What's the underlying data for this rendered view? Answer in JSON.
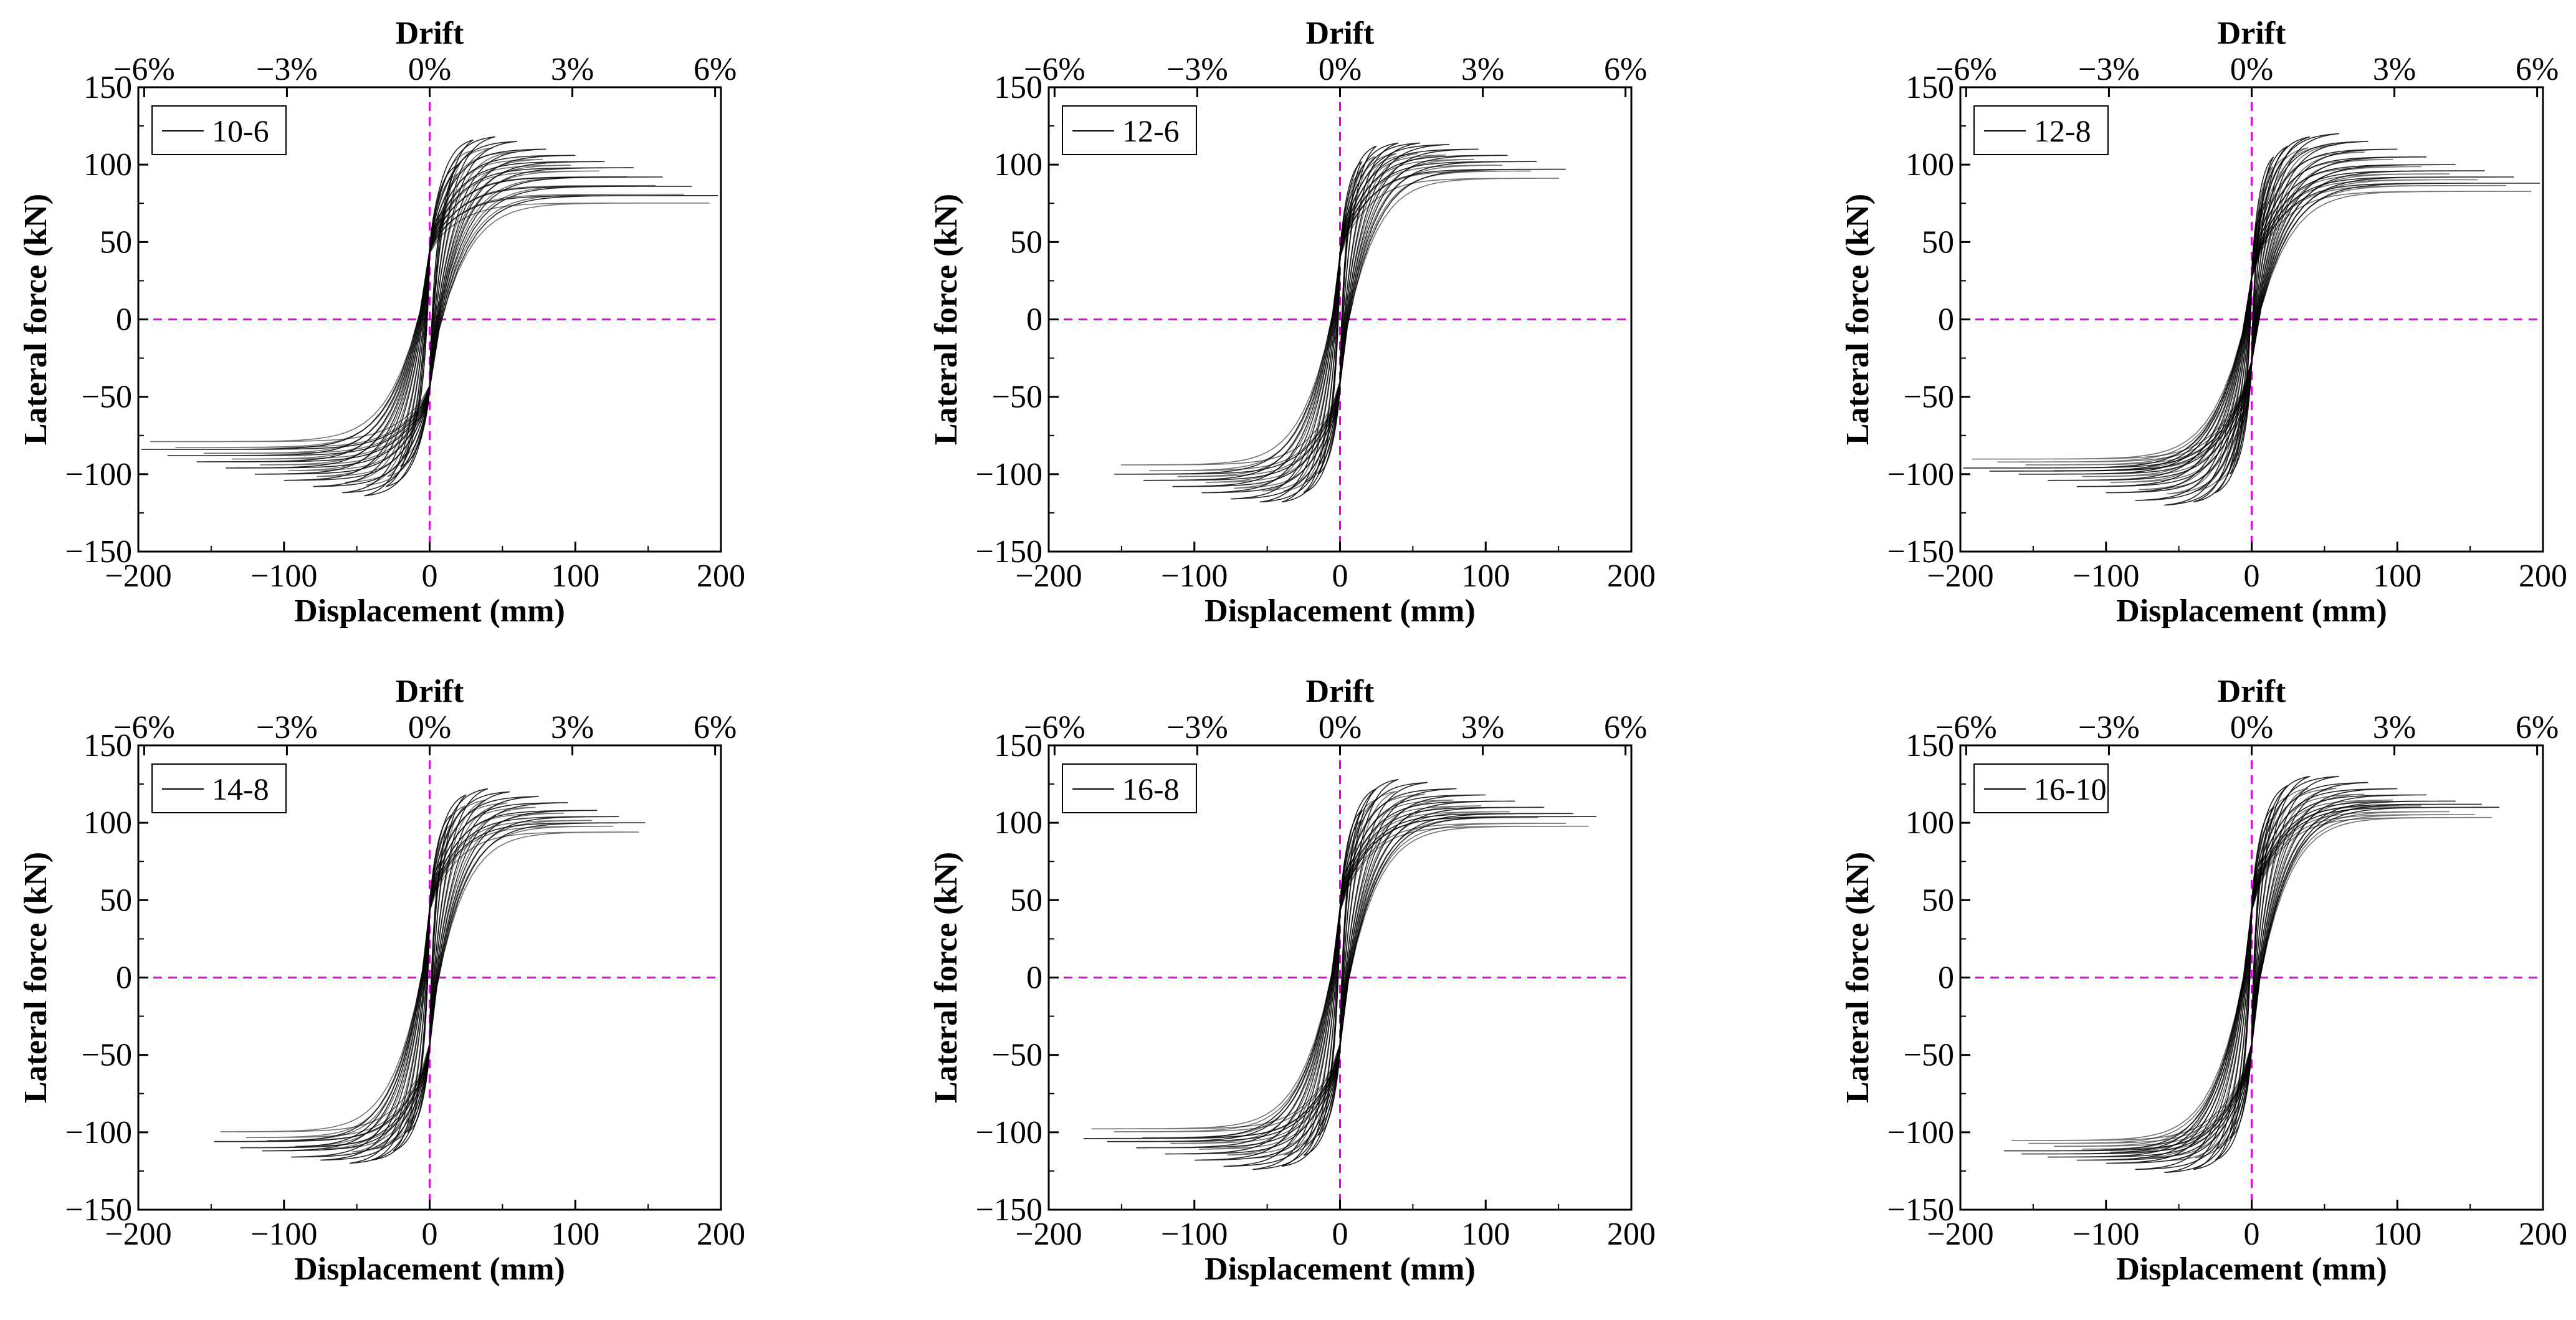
{
  "chart_data": [
    {
      "type": "line",
      "panel": "10-6",
      "legend": [
        "10-6"
      ],
      "xlabel": "Displacement (mm)",
      "ylabel": "Lateral force (kN)",
      "top_xlabel": "Drift",
      "xlim": [
        -200,
        200
      ],
      "ylim": [
        -150,
        150
      ],
      "xticks": [
        -200,
        -100,
        0,
        100,
        200
      ],
      "yticks": [
        -150,
        -100,
        -50,
        0,
        50,
        100,
        150
      ],
      "top_ticks": [
        "−6%",
        "−3%",
        "0%",
        "3%",
        "6%"
      ],
      "reference_lines": {
        "x": 0,
        "y": 0,
        "color": "#e600e6",
        "style": "dashed"
      },
      "series_color": "#000000",
      "loops": [
        {
          "d": 10,
          "fmax": 70,
          "fmin": -66
        },
        {
          "d": 20,
          "fmax": 100,
          "fmin": -95
        },
        {
          "d": 30,
          "fmax": 116,
          "fmin": -108
        },
        {
          "d": 45,
          "fmax": 118,
          "fmin": -114
        },
        {
          "d": 60,
          "fmax": 115,
          "fmin": -112
        },
        {
          "d": 80,
          "fmax": 110,
          "fmin": -108
        },
        {
          "d": 100,
          "fmax": 106,
          "fmin": -104
        },
        {
          "d": 120,
          "fmax": 102,
          "fmin": -100
        },
        {
          "d": 140,
          "fmax": 98,
          "fmin": -96
        },
        {
          "d": 160,
          "fmax": 92,
          "fmin": -92
        },
        {
          "d": 180,
          "fmax": 86,
          "fmin": -88
        },
        {
          "d": 198,
          "fmax": 80,
          "fmin": -84
        }
      ],
      "pinch": 45,
      "max_displacement_mm": 200,
      "peak_force_kN": 120
    },
    {
      "type": "line",
      "panel": "12-6",
      "legend": [
        "12-6"
      ],
      "xlabel": "Displacement (mm)",
      "ylabel": "Lateral force (kN)",
      "top_xlabel": "Drift",
      "xlim": [
        -200,
        200
      ],
      "ylim": [
        -150,
        150
      ],
      "xticks": [
        -200,
        -100,
        0,
        100,
        200
      ],
      "yticks": [
        -150,
        -100,
        -50,
        0,
        50,
        100,
        150
      ],
      "top_ticks": [
        "−6%",
        "−3%",
        "0%",
        "3%",
        "6%"
      ],
      "reference_lines": {
        "x": 0,
        "y": 0,
        "color": "#e600e6",
        "style": "dashed"
      },
      "series_color": "#000000",
      "loops": [
        {
          "d": 8,
          "fmax": 72,
          "fmin": -70
        },
        {
          "d": 15,
          "fmax": 102,
          "fmin": -100
        },
        {
          "d": 25,
          "fmax": 112,
          "fmin": -112
        },
        {
          "d": 40,
          "fmax": 114,
          "fmin": -118
        },
        {
          "d": 55,
          "fmax": 114,
          "fmin": -118
        },
        {
          "d": 75,
          "fmax": 113,
          "fmin": -116
        },
        {
          "d": 95,
          "fmax": 110,
          "fmin": -112
        },
        {
          "d": 115,
          "fmax": 106,
          "fmin": -108
        },
        {
          "d": 135,
          "fmax": 102,
          "fmin": -104
        },
        {
          "d": 155,
          "fmax": 97,
          "fmin": -100
        }
      ],
      "pinch": 42,
      "max_displacement_mm": 155,
      "peak_force_kN": 118
    },
    {
      "type": "line",
      "panel": "12-8",
      "legend": [
        "12-8"
      ],
      "xlabel": "Displacement (mm)",
      "ylabel": "Lateral force (kN)",
      "top_xlabel": "Drift",
      "xlim": [
        -200,
        200
      ],
      "ylim": [
        -150,
        150
      ],
      "xticks": [
        -200,
        -100,
        0,
        100,
        200
      ],
      "yticks": [
        -150,
        -100,
        -50,
        0,
        50,
        100,
        150
      ],
      "top_ticks": [
        "−6%",
        "−3%",
        "0%",
        "3%",
        "6%"
      ],
      "reference_lines": {
        "x": 0,
        "y": 0,
        "color": "#e600e6",
        "style": "dashed"
      },
      "series_color": "#000000",
      "loops": [
        {
          "d": 8,
          "fmax": 75,
          "fmin": -70
        },
        {
          "d": 15,
          "fmax": 105,
          "fmin": -100
        },
        {
          "d": 25,
          "fmax": 112,
          "fmin": -112
        },
        {
          "d": 40,
          "fmax": 118,
          "fmin": -118
        },
        {
          "d": 60,
          "fmax": 120,
          "fmin": -120
        },
        {
          "d": 80,
          "fmax": 115,
          "fmin": -117
        },
        {
          "d": 100,
          "fmax": 110,
          "fmin": -112
        },
        {
          "d": 120,
          "fmax": 105,
          "fmin": -108
        },
        {
          "d": 140,
          "fmax": 100,
          "fmin": -104
        },
        {
          "d": 160,
          "fmax": 96,
          "fmin": -100
        },
        {
          "d": 180,
          "fmax": 92,
          "fmin": -98
        },
        {
          "d": 198,
          "fmax": 88,
          "fmin": -96
        }
      ],
      "pinch": 28,
      "max_displacement_mm": 200,
      "peak_force_kN": 120
    },
    {
      "type": "line",
      "panel": "14-8",
      "legend": [
        "14-8"
      ],
      "xlabel": "Displacement (mm)",
      "ylabel": "Lateral force (kN)",
      "top_xlabel": "Drift",
      "xlim": [
        -200,
        200
      ],
      "ylim": [
        -150,
        150
      ],
      "xticks": [
        -200,
        -100,
        0,
        100,
        200
      ],
      "yticks": [
        -150,
        -100,
        -50,
        0,
        50,
        100,
        150
      ],
      "top_ticks": [
        "−6%",
        "−3%",
        "0%",
        "3%",
        "6%"
      ],
      "reference_lines": {
        "x": 0,
        "y": 0,
        "color": "#e600e6",
        "style": "dashed"
      },
      "series_color": "#000000",
      "loops": [
        {
          "d": 8,
          "fmax": 75,
          "fmin": -70
        },
        {
          "d": 15,
          "fmax": 105,
          "fmin": -100
        },
        {
          "d": 25,
          "fmax": 118,
          "fmin": -112
        },
        {
          "d": 40,
          "fmax": 122,
          "fmin": -118
        },
        {
          "d": 55,
          "fmax": 120,
          "fmin": -120
        },
        {
          "d": 75,
          "fmax": 117,
          "fmin": -118
        },
        {
          "d": 95,
          "fmax": 113,
          "fmin": -116
        },
        {
          "d": 115,
          "fmax": 108,
          "fmin": -112
        },
        {
          "d": 130,
          "fmax": 104,
          "fmin": -110
        },
        {
          "d": 148,
          "fmax": 100,
          "fmin": -106
        }
      ],
      "pinch": 45,
      "max_displacement_mm": 150,
      "peak_force_kN": 122
    },
    {
      "type": "line",
      "panel": "16-8",
      "legend": [
        "16-8"
      ],
      "xlabel": "Displacement (mm)",
      "ylabel": "Lateral force (kN)",
      "top_xlabel": "Drift",
      "xlim": [
        -200,
        200
      ],
      "ylim": [
        -150,
        150
      ],
      "xticks": [
        -200,
        -100,
        0,
        100,
        200
      ],
      "yticks": [
        -150,
        -100,
        -50,
        0,
        50,
        100,
        150
      ],
      "top_ticks": [
        "−6%",
        "−3%",
        "0%",
        "3%",
        "6%"
      ],
      "reference_lines": {
        "x": 0,
        "y": 0,
        "color": "#e600e6",
        "style": "dashed"
      },
      "series_color": "#000000",
      "loops": [
        {
          "d": 8,
          "fmax": 75,
          "fmin": -70
        },
        {
          "d": 15,
          "fmax": 108,
          "fmin": -102
        },
        {
          "d": 25,
          "fmax": 122,
          "fmin": -115
        },
        {
          "d": 40,
          "fmax": 128,
          "fmin": -122
        },
        {
          "d": 60,
          "fmax": 126,
          "fmin": -124
        },
        {
          "d": 80,
          "fmax": 122,
          "fmin": -122
        },
        {
          "d": 100,
          "fmax": 118,
          "fmin": -118
        },
        {
          "d": 120,
          "fmax": 114,
          "fmin": -114
        },
        {
          "d": 140,
          "fmax": 110,
          "fmin": -110
        },
        {
          "d": 160,
          "fmax": 106,
          "fmin": -106
        },
        {
          "d": 176,
          "fmax": 104,
          "fmin": -104
        }
      ],
      "pinch": 45,
      "max_displacement_mm": 176,
      "peak_force_kN": 128
    },
    {
      "type": "line",
      "panel": "16-10",
      "legend": [
        "16-10"
      ],
      "xlabel": "Displacement (mm)",
      "ylabel": "Lateral force (kN)",
      "top_xlabel": "Drift",
      "xlim": [
        -200,
        200
      ],
      "ylim": [
        -150,
        150
      ],
      "xticks": [
        -200,
        -100,
        0,
        100,
        200
      ],
      "yticks": [
        -150,
        -100,
        -50,
        0,
        50,
        100,
        150
      ],
      "top_ticks": [
        "−6%",
        "−3%",
        "0%",
        "3%",
        "6%"
      ],
      "reference_lines": {
        "x": 0,
        "y": 0,
        "color": "#e600e6",
        "style": "dashed"
      },
      "series_color": "#000000",
      "loops": [
        {
          "d": 8,
          "fmax": 78,
          "fmin": -72
        },
        {
          "d": 15,
          "fmax": 110,
          "fmin": -104
        },
        {
          "d": 25,
          "fmax": 124,
          "fmin": -118
        },
        {
          "d": 40,
          "fmax": 130,
          "fmin": -124
        },
        {
          "d": 60,
          "fmax": 130,
          "fmin": -126
        },
        {
          "d": 80,
          "fmax": 126,
          "fmin": -124
        },
        {
          "d": 100,
          "fmax": 122,
          "fmin": -120
        },
        {
          "d": 120,
          "fmax": 118,
          "fmin": -118
        },
        {
          "d": 140,
          "fmax": 114,
          "fmin": -116
        },
        {
          "d": 158,
          "fmax": 112,
          "fmin": -114
        },
        {
          "d": 170,
          "fmax": 110,
          "fmin": -112
        }
      ],
      "pinch": 45,
      "max_displacement_mm": 170,
      "peak_force_kN": 130
    }
  ]
}
